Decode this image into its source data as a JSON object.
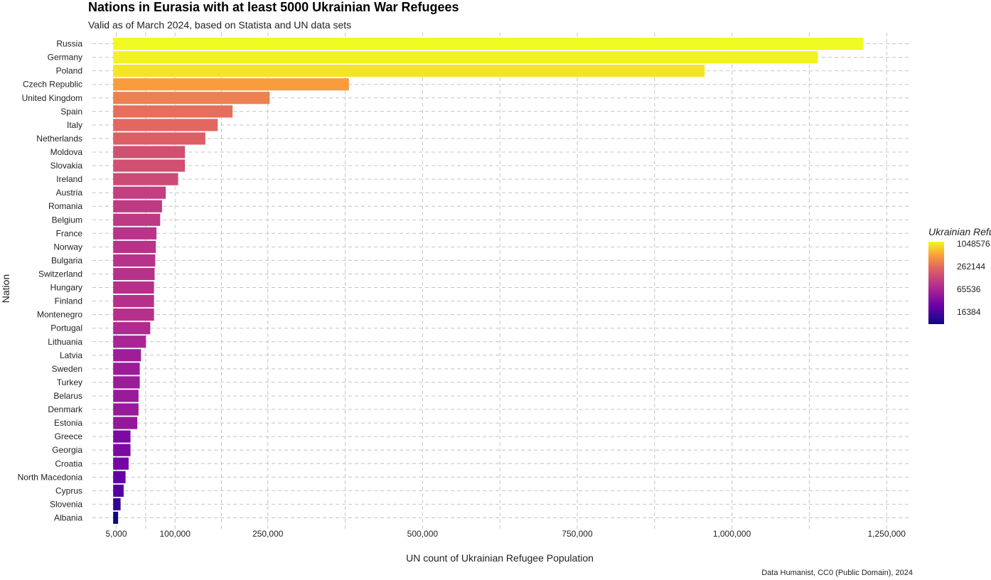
{
  "chart_data": {
    "type": "bar",
    "orientation": "horizontal",
    "title": "Nations in Eurasia with at least 5000 Ukrainian War Refugees",
    "subtitle": "Valid as of March 2024, based on Statista and UN data sets",
    "xlabel": "UN count of Ukrainian Refugee Population",
    "ylabel": "Nation",
    "caption": "Data Humanist, CC0 (Public Domain), 2024",
    "xlim": [
      -45000,
      1290000
    ],
    "x_ticks": [
      5000,
      100000,
      250000,
      500000,
      750000,
      1000000,
      1250000
    ],
    "x_tick_labels": [
      "5,000",
      "100,000",
      "250,000",
      "500,000",
      "750,000",
      "1,000,000",
      "1,250,000"
    ],
    "grid": true,
    "categories": [
      "Russia",
      "Germany",
      "Poland",
      "Czech Republic",
      "United Kingdom",
      "Spain",
      "Italy",
      "Netherlands",
      "Moldova",
      "Slovakia",
      "Ireland",
      "Austria",
      "Romania",
      "Belgium",
      "France",
      "Norway",
      "Bulgaria",
      "Switzerland",
      "Hungary",
      "Finland",
      "Montenegro",
      "Portugal",
      "Lithuania",
      "Latvia",
      "Sweden",
      "Turkey",
      "Belarus",
      "Denmark",
      "Estonia",
      "Greece",
      "Georgia",
      "Croatia",
      "North Macedonia",
      "Cyprus",
      "Slovenia",
      "Albania"
    ],
    "values": [
      1212000,
      1139000,
      956000,
      381000,
      253000,
      193000,
      169000,
      149000,
      116000,
      116000,
      105000,
      85000,
      79000,
      76000,
      70000,
      69000,
      68000,
      67000,
      66000,
      66000,
      66000,
      60000,
      53000,
      45000,
      43000,
      43000,
      41000,
      41000,
      39000,
      28000,
      28000,
      25000,
      20000,
      17000,
      12000,
      8000
    ],
    "legend": {
      "title": "Ukrainian Refugees:",
      "scale": "log",
      "position": "right",
      "breaks": [
        16384,
        65536,
        262144,
        1048576
      ],
      "break_labels": [
        "16384",
        "65536",
        "262144",
        "1048576"
      ],
      "colors": [
        "#0d0887",
        "#6a00a8",
        "#b12a90",
        "#e16462",
        "#fca636",
        "#f0f921"
      ]
    }
  }
}
